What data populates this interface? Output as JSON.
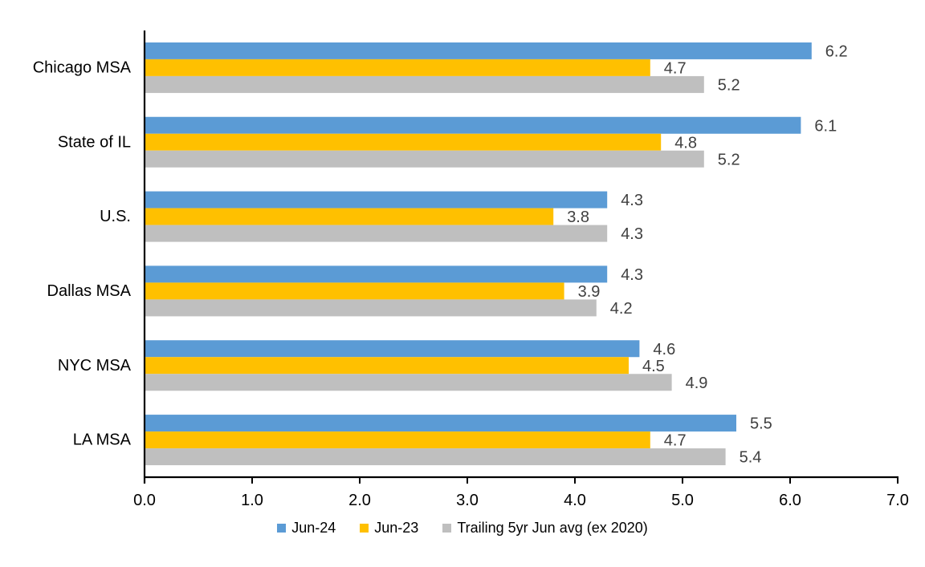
{
  "chart_data": {
    "type": "bar",
    "orientation": "horizontal",
    "title": "",
    "xlabel": "",
    "ylabel": "",
    "categories": [
      "Chicago MSA",
      "State of IL",
      "U.S.",
      "Dallas MSA",
      "NYC MSA",
      "LA MSA"
    ],
    "series": [
      {
        "name": "Jun-24",
        "color": "#5B9BD5",
        "values": [
          6.2,
          6.1,
          4.3,
          4.3,
          4.6,
          5.5
        ]
      },
      {
        "name": "Jun-23",
        "color": "#FFC000",
        "values": [
          4.7,
          4.8,
          3.8,
          3.9,
          4.5,
          4.7
        ]
      },
      {
        "name": "Trailing 5yr Jun avg (ex 2020)",
        "color": "#BFBFBF",
        "values": [
          5.2,
          5.2,
          4.3,
          4.2,
          4.9,
          5.4
        ]
      }
    ],
    "xlim": [
      0,
      7
    ],
    "x_ticks": [
      "0.0",
      "1.0",
      "2.0",
      "3.0",
      "4.0",
      "5.0",
      "6.0",
      "7.0"
    ],
    "grid": false,
    "legend_position": "bottom",
    "data_labels": true,
    "data_label_color": "#404040",
    "axis_text_color": "#000000",
    "axis_line_color": "#000000"
  }
}
